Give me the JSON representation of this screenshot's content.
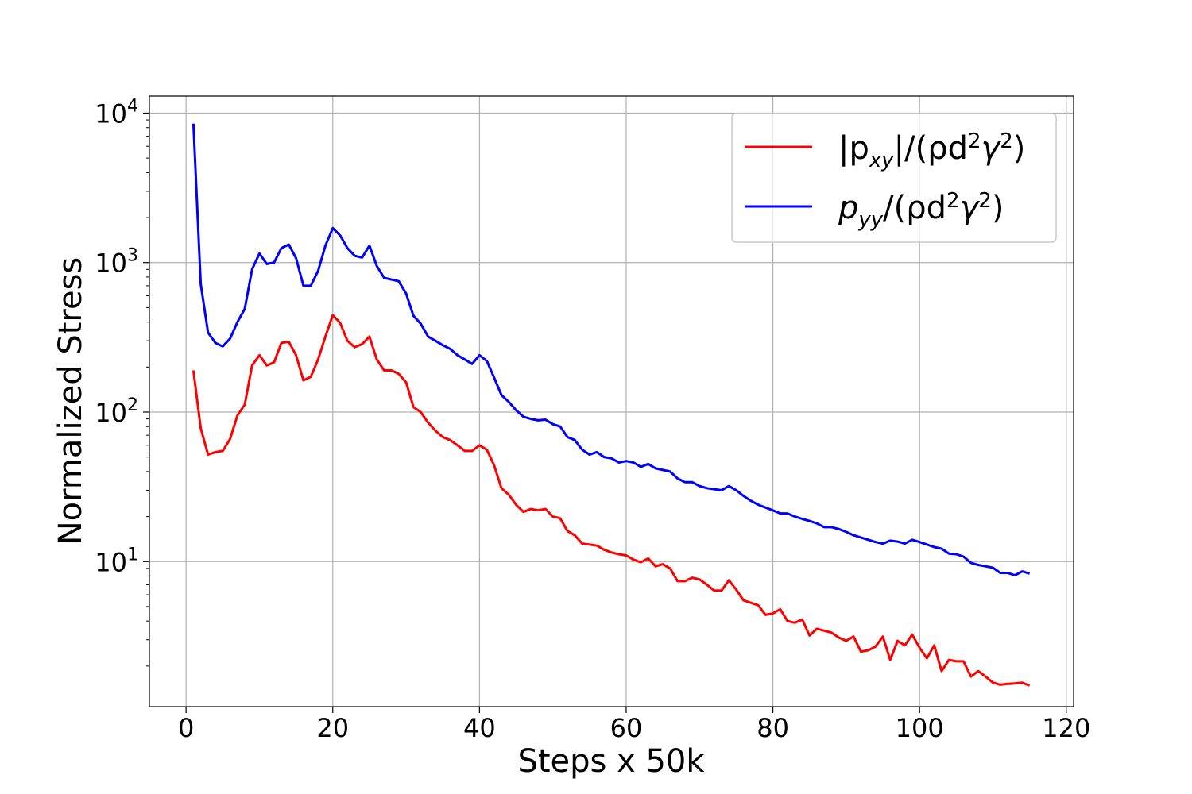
{
  "chart_data": {
    "type": "line",
    "xlabel": "Steps x 50k",
    "ylabel": "Normalized Stress",
    "xlim": [
      -5,
      121
    ],
    "ylim": [
      1.07,
      13000
    ],
    "yscale": "log",
    "grid": true,
    "legend_position": "top-right",
    "x_ticks": [
      0,
      20,
      40,
      60,
      80,
      100,
      120
    ],
    "x_tick_labels": [
      "0",
      "20",
      "40",
      "60",
      "80",
      "100",
      "120"
    ],
    "y_ticks": [
      10,
      100,
      1000,
      10000
    ],
    "y_tick_labels": [
      {
        "base": "10",
        "exp": "1"
      },
      {
        "base": "10",
        "exp": "2"
      },
      {
        "base": "10",
        "exp": "3"
      },
      {
        "base": "10",
        "exp": "4"
      }
    ],
    "x_start": 1,
    "x_step": 1,
    "series": [
      {
        "name": "|p_xy|/(ρd²γ²)",
        "legend_parts": {
          "open_bar": "|p",
          "sub": "xy",
          "mid": "|/(ρd",
          "sup1": "2",
          "gamma": "γ",
          "sup2": "2",
          "close": ")"
        },
        "color": "#ff0000",
        "values": [
          190,
          78,
          52,
          54,
          55,
          66,
          95,
          112,
          205,
          240,
          205,
          215,
          290,
          295,
          240,
          163,
          172,
          225,
          320,
          445,
          395,
          300,
          272,
          285,
          320,
          225,
          190,
          190,
          180,
          158,
          108,
          100,
          85,
          75,
          68,
          65,
          60,
          55,
          55,
          60,
          56,
          44,
          31,
          28,
          24,
          21.5,
          22.5,
          22,
          22.5,
          20,
          19.5,
          16,
          15,
          13.2,
          13,
          12.8,
          12,
          11.5,
          11.2,
          11,
          10.3,
          9.9,
          10.5,
          9.3,
          9.6,
          9,
          7.4,
          7.4,
          7.8,
          7.6,
          7,
          6.4,
          6.4,
          7.5,
          6.5,
          5.5,
          5.3,
          5.1,
          4.4,
          4.5,
          4.8,
          4,
          3.9,
          4.1,
          3.2,
          3.55,
          3.45,
          3.35,
          3.1,
          2.95,
          3.15,
          2.5,
          2.55,
          2.7,
          3.15,
          2.2,
          2.95,
          2.75,
          3.25,
          2.65,
          2.25,
          2.75,
          1.85,
          2.2,
          2.15,
          2.15,
          1.7,
          1.85,
          1.7,
          1.55,
          1.5,
          1.52,
          1.53,
          1.55,
          1.48
        ]
      },
      {
        "name": "p_yy/(ρd²γ²)",
        "legend_parts": {
          "open_bar": "p",
          "sub": "yy",
          "mid": "/(ρd",
          "sup1": "2",
          "gamma": "γ",
          "sup2": "2",
          "close": ")"
        },
        "color": "#0000ff",
        "values": [
          8500,
          720,
          340,
          290,
          275,
          310,
          400,
          490,
          900,
          1150,
          980,
          1000,
          1250,
          1320,
          1070,
          700,
          700,
          880,
          1300,
          1700,
          1520,
          1250,
          1110,
          1080,
          1300,
          950,
          790,
          770,
          750,
          620,
          440,
          390,
          320,
          300,
          280,
          265,
          240,
          225,
          210,
          240,
          220,
          170,
          130,
          117,
          103,
          93,
          90,
          88,
          89,
          83,
          80,
          68,
          65,
          56,
          52,
          54,
          50,
          49,
          46,
          47,
          46,
          43,
          45,
          42,
          41,
          40,
          36,
          34,
          34,
          32,
          31,
          30.5,
          30,
          32,
          30,
          27.5,
          25.5,
          24,
          23,
          22,
          21,
          21,
          20,
          19.3,
          18.7,
          18,
          17,
          17,
          16.5,
          15.8,
          15,
          14.5,
          14,
          13.5,
          13.2,
          13.8,
          13.6,
          13.2,
          14,
          13.5,
          13,
          12.5,
          12.2,
          11.3,
          11.2,
          10.8,
          9.8,
          9.5,
          9.3,
          9.1,
          8.4,
          8.4,
          8.1,
          8.6,
          8.3
        ]
      }
    ]
  }
}
